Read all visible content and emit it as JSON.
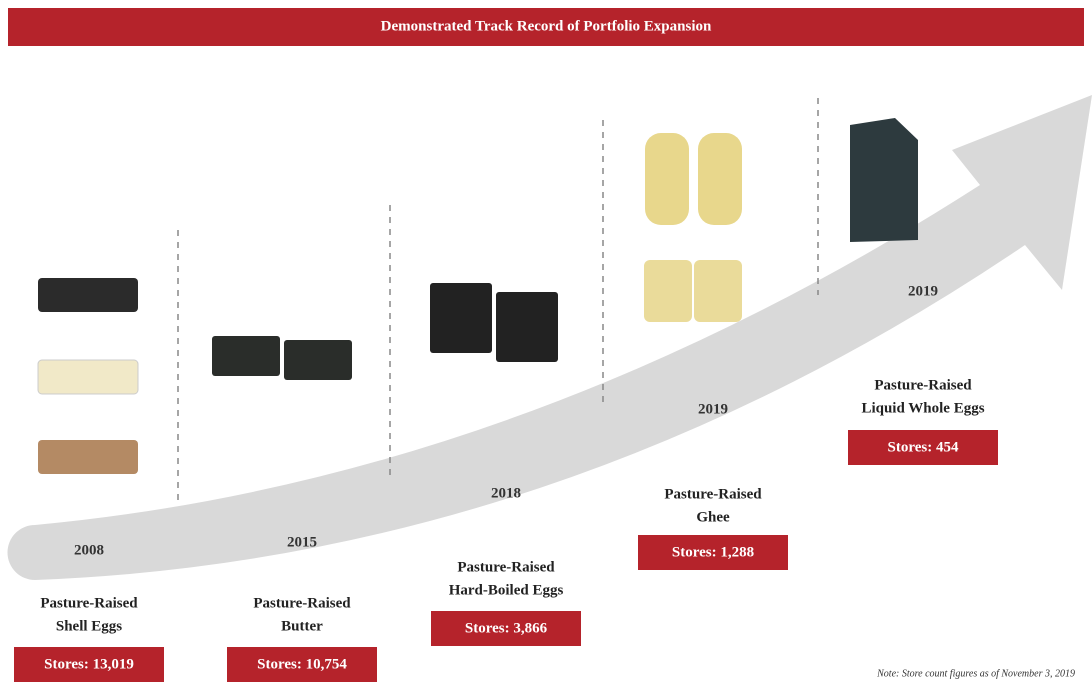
{
  "header": {
    "title": "Demonstrated Track Record of Portfolio Expansion"
  },
  "milestones": [
    {
      "year": "2008",
      "name": [
        "Pasture-Raised",
        "Shell Eggs"
      ],
      "stores": "Stores: 13,019"
    },
    {
      "year": "2015",
      "name": [
        "Pasture-Raised",
        "Butter"
      ],
      "stores": "Stores: 10,754"
    },
    {
      "year": "2018",
      "name": [
        "Pasture-Raised",
        "Hard-Boiled Eggs"
      ],
      "stores": "Stores: 3,866"
    },
    {
      "year": "2019",
      "name": [
        "Pasture-Raised",
        "Ghee"
      ],
      "stores": "Stores: 1,288"
    },
    {
      "year": "2019",
      "name": [
        "Pasture-Raised",
        "Liquid Whole Eggs"
      ],
      "stores": "Stores: 454"
    }
  ],
  "note": "Note: Store count figures as of November 3, 2019"
}
